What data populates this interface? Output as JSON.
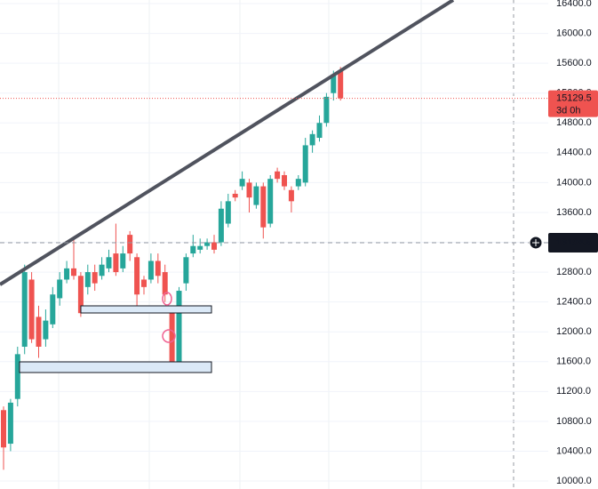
{
  "chart_data": {
    "type": "candlestick",
    "up_color": "#26a69a",
    "down_color": "#ef5350",
    "open": [
      10950,
      10500,
      11100,
      11800,
      12700,
      12200,
      11900,
      12100,
      12450,
      12700,
      12850,
      12750,
      12600,
      12800,
      12750,
      12850,
      13050,
      12850,
      13300,
      13000,
      12700,
      12700,
      12950,
      12800,
      12300,
      11600,
      12650,
      13050,
      13100,
      13150,
      13200,
      13200,
      13450,
      13850,
      13950,
      14000,
      13700,
      13950,
      13450,
      14150,
      14100,
      13900,
      13950,
      14000,
      14500,
      14600,
      14800,
      15200,
      15500
    ],
    "high": [
      11000,
      11100,
      11800,
      12900,
      12800,
      12350,
      12300,
      12600,
      12800,
      12950,
      13250,
      12800,
      12900,
      12900,
      13000,
      13100,
      13450,
      13150,
      13350,
      13050,
      12750,
      13050,
      13050,
      12900,
      12350,
      12600,
      13050,
      13300,
      13250,
      13250,
      13300,
      13750,
      13850,
      13900,
      14150,
      14050,
      14000,
      14000,
      14100,
      14200,
      14150,
      13950,
      14100,
      14600,
      14700,
      14900,
      15200,
      15500,
      15550
    ],
    "low": [
      10150,
      10400,
      11000,
      11700,
      11850,
      11650,
      11800,
      12050,
      12350,
      12650,
      12700,
      12200,
      12500,
      12550,
      12700,
      12800,
      12750,
      12800,
      12950,
      12350,
      12500,
      12650,
      12650,
      12400,
      11500,
      11550,
      12550,
      13000,
      13050,
      13100,
      13050,
      13150,
      13400,
      13750,
      13900,
      13600,
      13650,
      13250,
      13400,
      14000,
      13900,
      13600,
      13900,
      13950,
      14400,
      14550,
      14750,
      15100,
      15100
    ],
    "close": [
      10450,
      11050,
      11700,
      12800,
      11900,
      11800,
      12150,
      12500,
      12700,
      12850,
      12750,
      12250,
      12800,
      12650,
      12900,
      13000,
      12800,
      13050,
      13050,
      12500,
      12600,
      12950,
      12750,
      12500,
      11600,
      12550,
      13000,
      13150,
      13150,
      13200,
      13100,
      13650,
      13750,
      13800,
      14050,
      13800,
      13950,
      13400,
      14050,
      14050,
      13950,
      13750,
      14050,
      14500,
      14650,
      14800,
      15150,
      15450,
      15129.5
    ],
    "ylim": [
      10000,
      16400
    ],
    "yticks": [
      {
        "value": 10000,
        "label": "10000.0"
      },
      {
        "value": 10400,
        "label": "10400.0"
      },
      {
        "value": 10800,
        "label": "10800.0"
      },
      {
        "value": 11200,
        "label": "11200.0"
      },
      {
        "value": 11600,
        "label": "11600.0"
      },
      {
        "value": 12000,
        "label": "12000.0"
      },
      {
        "value": 12400,
        "label": "12400.0"
      },
      {
        "value": 12800,
        "label": "12800.0"
      },
      {
        "value": 13200,
        "label": "13200.0"
      },
      {
        "value": 13600,
        "label": "13600.0"
      },
      {
        "value": 14000,
        "label": "14000.0"
      },
      {
        "value": 14400,
        "label": "14400.0"
      },
      {
        "value": 14800,
        "label": "14800.0"
      },
      {
        "value": 15200,
        "label": "15200.0"
      },
      {
        "value": 15600,
        "label": "15600.0"
      },
      {
        "value": 16000,
        "label": "16000.0"
      },
      {
        "value": 16400,
        "label": "16400.0"
      }
    ],
    "last_price": 15129.5,
    "countdown": "3d 0h",
    "crosshair_price": 13194.6
  }
}
